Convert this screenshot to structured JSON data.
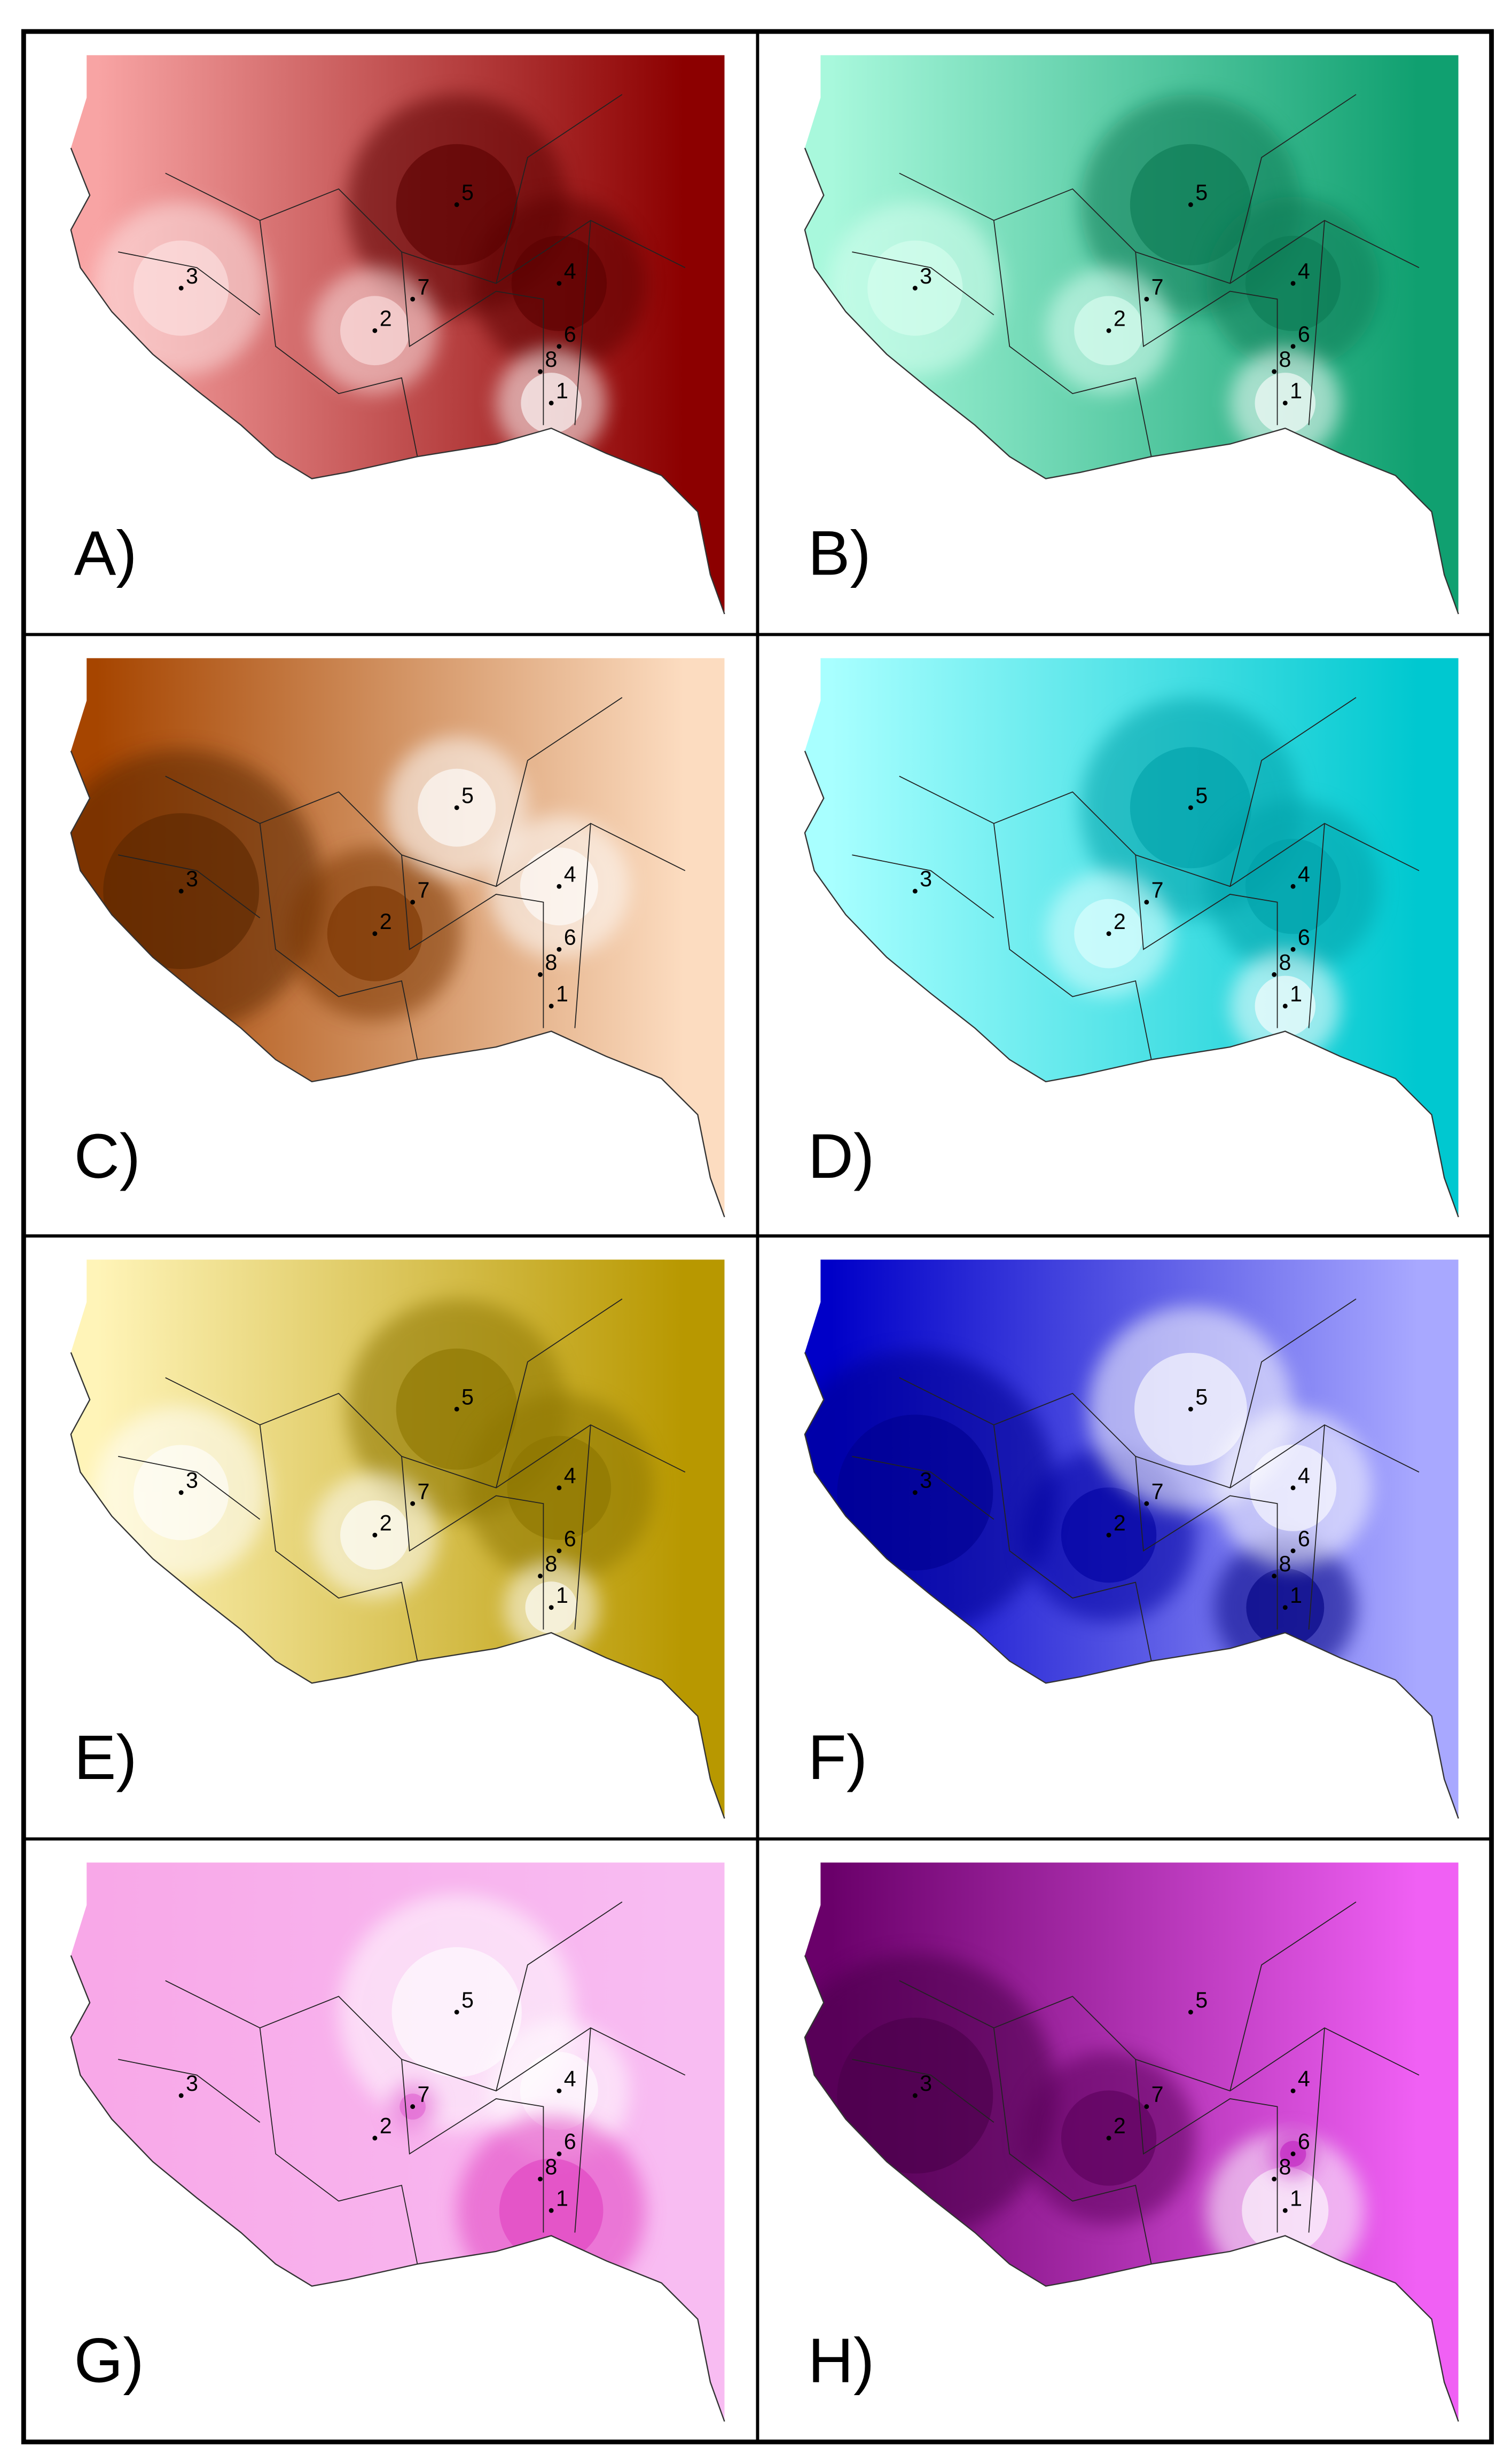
{
  "panels": [
    {
      "label": "A)"
    },
    {
      "label": "B)"
    },
    {
      "label": "C)"
    },
    {
      "label": "D)"
    },
    {
      "label": "E)"
    },
    {
      "label": "F)"
    },
    {
      "label": "G)"
    },
    {
      "label": "H)"
    }
  ],
  "site_labels": [
    "1",
    "2",
    "3",
    "4",
    "5",
    "6",
    "7",
    "8"
  ]
}
